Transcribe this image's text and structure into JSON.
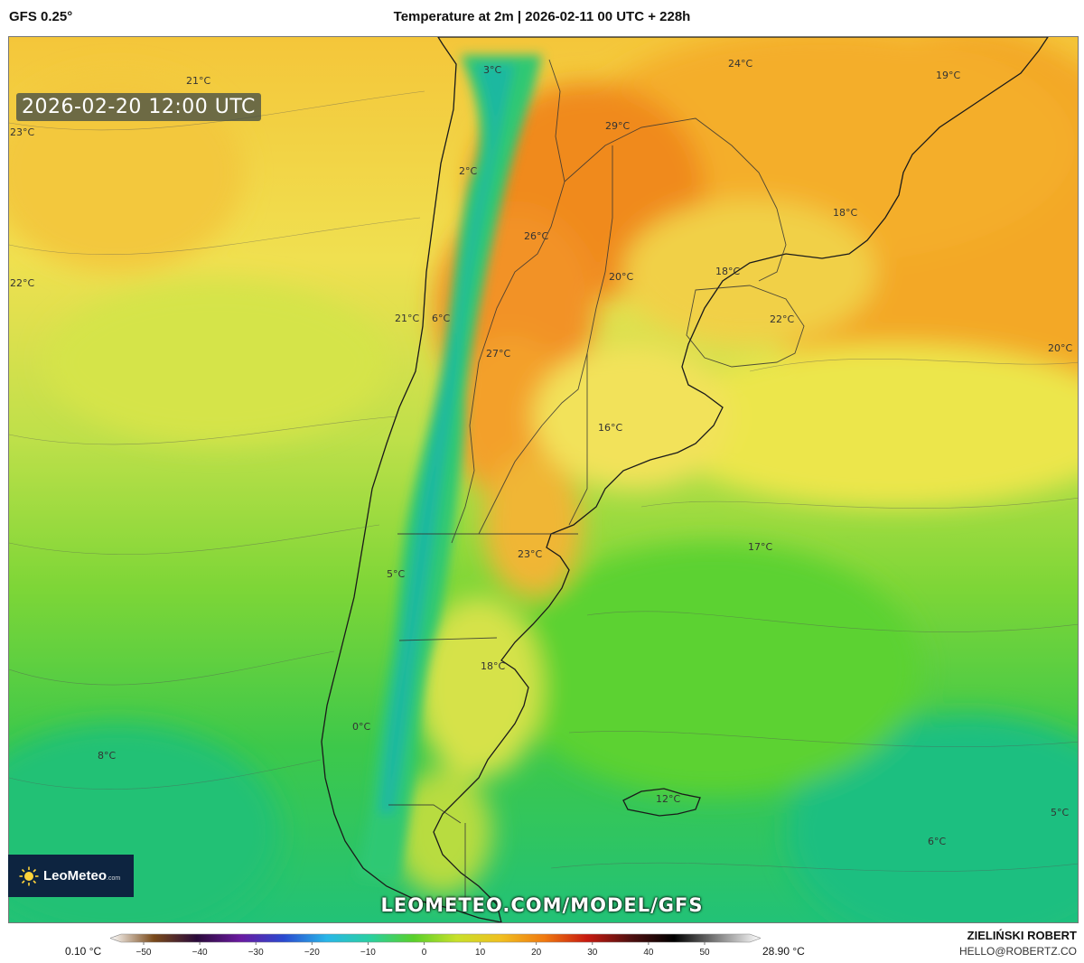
{
  "header": {
    "model": "GFS 0.25°",
    "title": "Temperature at 2m | 2026-02-11 00 UTC + 228h"
  },
  "valid_time": "2026-02-20 12:00 UTC",
  "map_labels": [
    {
      "text": "21°C"
    },
    {
      "text": "3°C"
    },
    {
      "text": "24°C"
    },
    {
      "text": "19°C"
    },
    {
      "text": "23°C"
    },
    {
      "text": "29°C"
    },
    {
      "text": "2°C"
    },
    {
      "text": "18°C"
    },
    {
      "text": "26°C"
    },
    {
      "text": "22°C"
    },
    {
      "text": "20°C"
    },
    {
      "text": "18°C"
    },
    {
      "text": "21°C"
    },
    {
      "text": "6°C"
    },
    {
      "text": "22°C"
    },
    {
      "text": "27°C"
    },
    {
      "text": "20°C"
    },
    {
      "text": "16°C"
    },
    {
      "text": "17°C"
    },
    {
      "text": "23°C"
    },
    {
      "text": "5°C"
    },
    {
      "text": "18°C"
    },
    {
      "text": "8°C"
    },
    {
      "text": "0°C"
    },
    {
      "text": "12°C"
    },
    {
      "text": "5°C"
    },
    {
      "text": "6°C"
    }
  ],
  "branding": {
    "logo": "LeoMeteo",
    "logo_domain": ".com",
    "url": "LEOMETEO.COM/MODEL/GFS"
  },
  "legend": {
    "min": "0.10 °C",
    "max": "28.90 °C",
    "ticks": [
      "−50",
      "−40",
      "−30",
      "−20",
      "−10",
      "0",
      "10",
      "20",
      "30",
      "40",
      "50"
    ],
    "colors": [
      "#ffffff",
      "#7a4a1a",
      "#2a0a3a",
      "#6a1aa0",
      "#2a4ad0",
      "#29b6e8",
      "#2ad0a0",
      "#5ad02a",
      "#c8e02a",
      "#f0c020",
      "#f07a10",
      "#c81a10",
      "#501010",
      "#000000",
      "#808080",
      "#ffffff"
    ]
  },
  "author": {
    "name": "ZIELIŃSKI ROBERT",
    "email": "HELLO@ROBERTZ.CO"
  }
}
